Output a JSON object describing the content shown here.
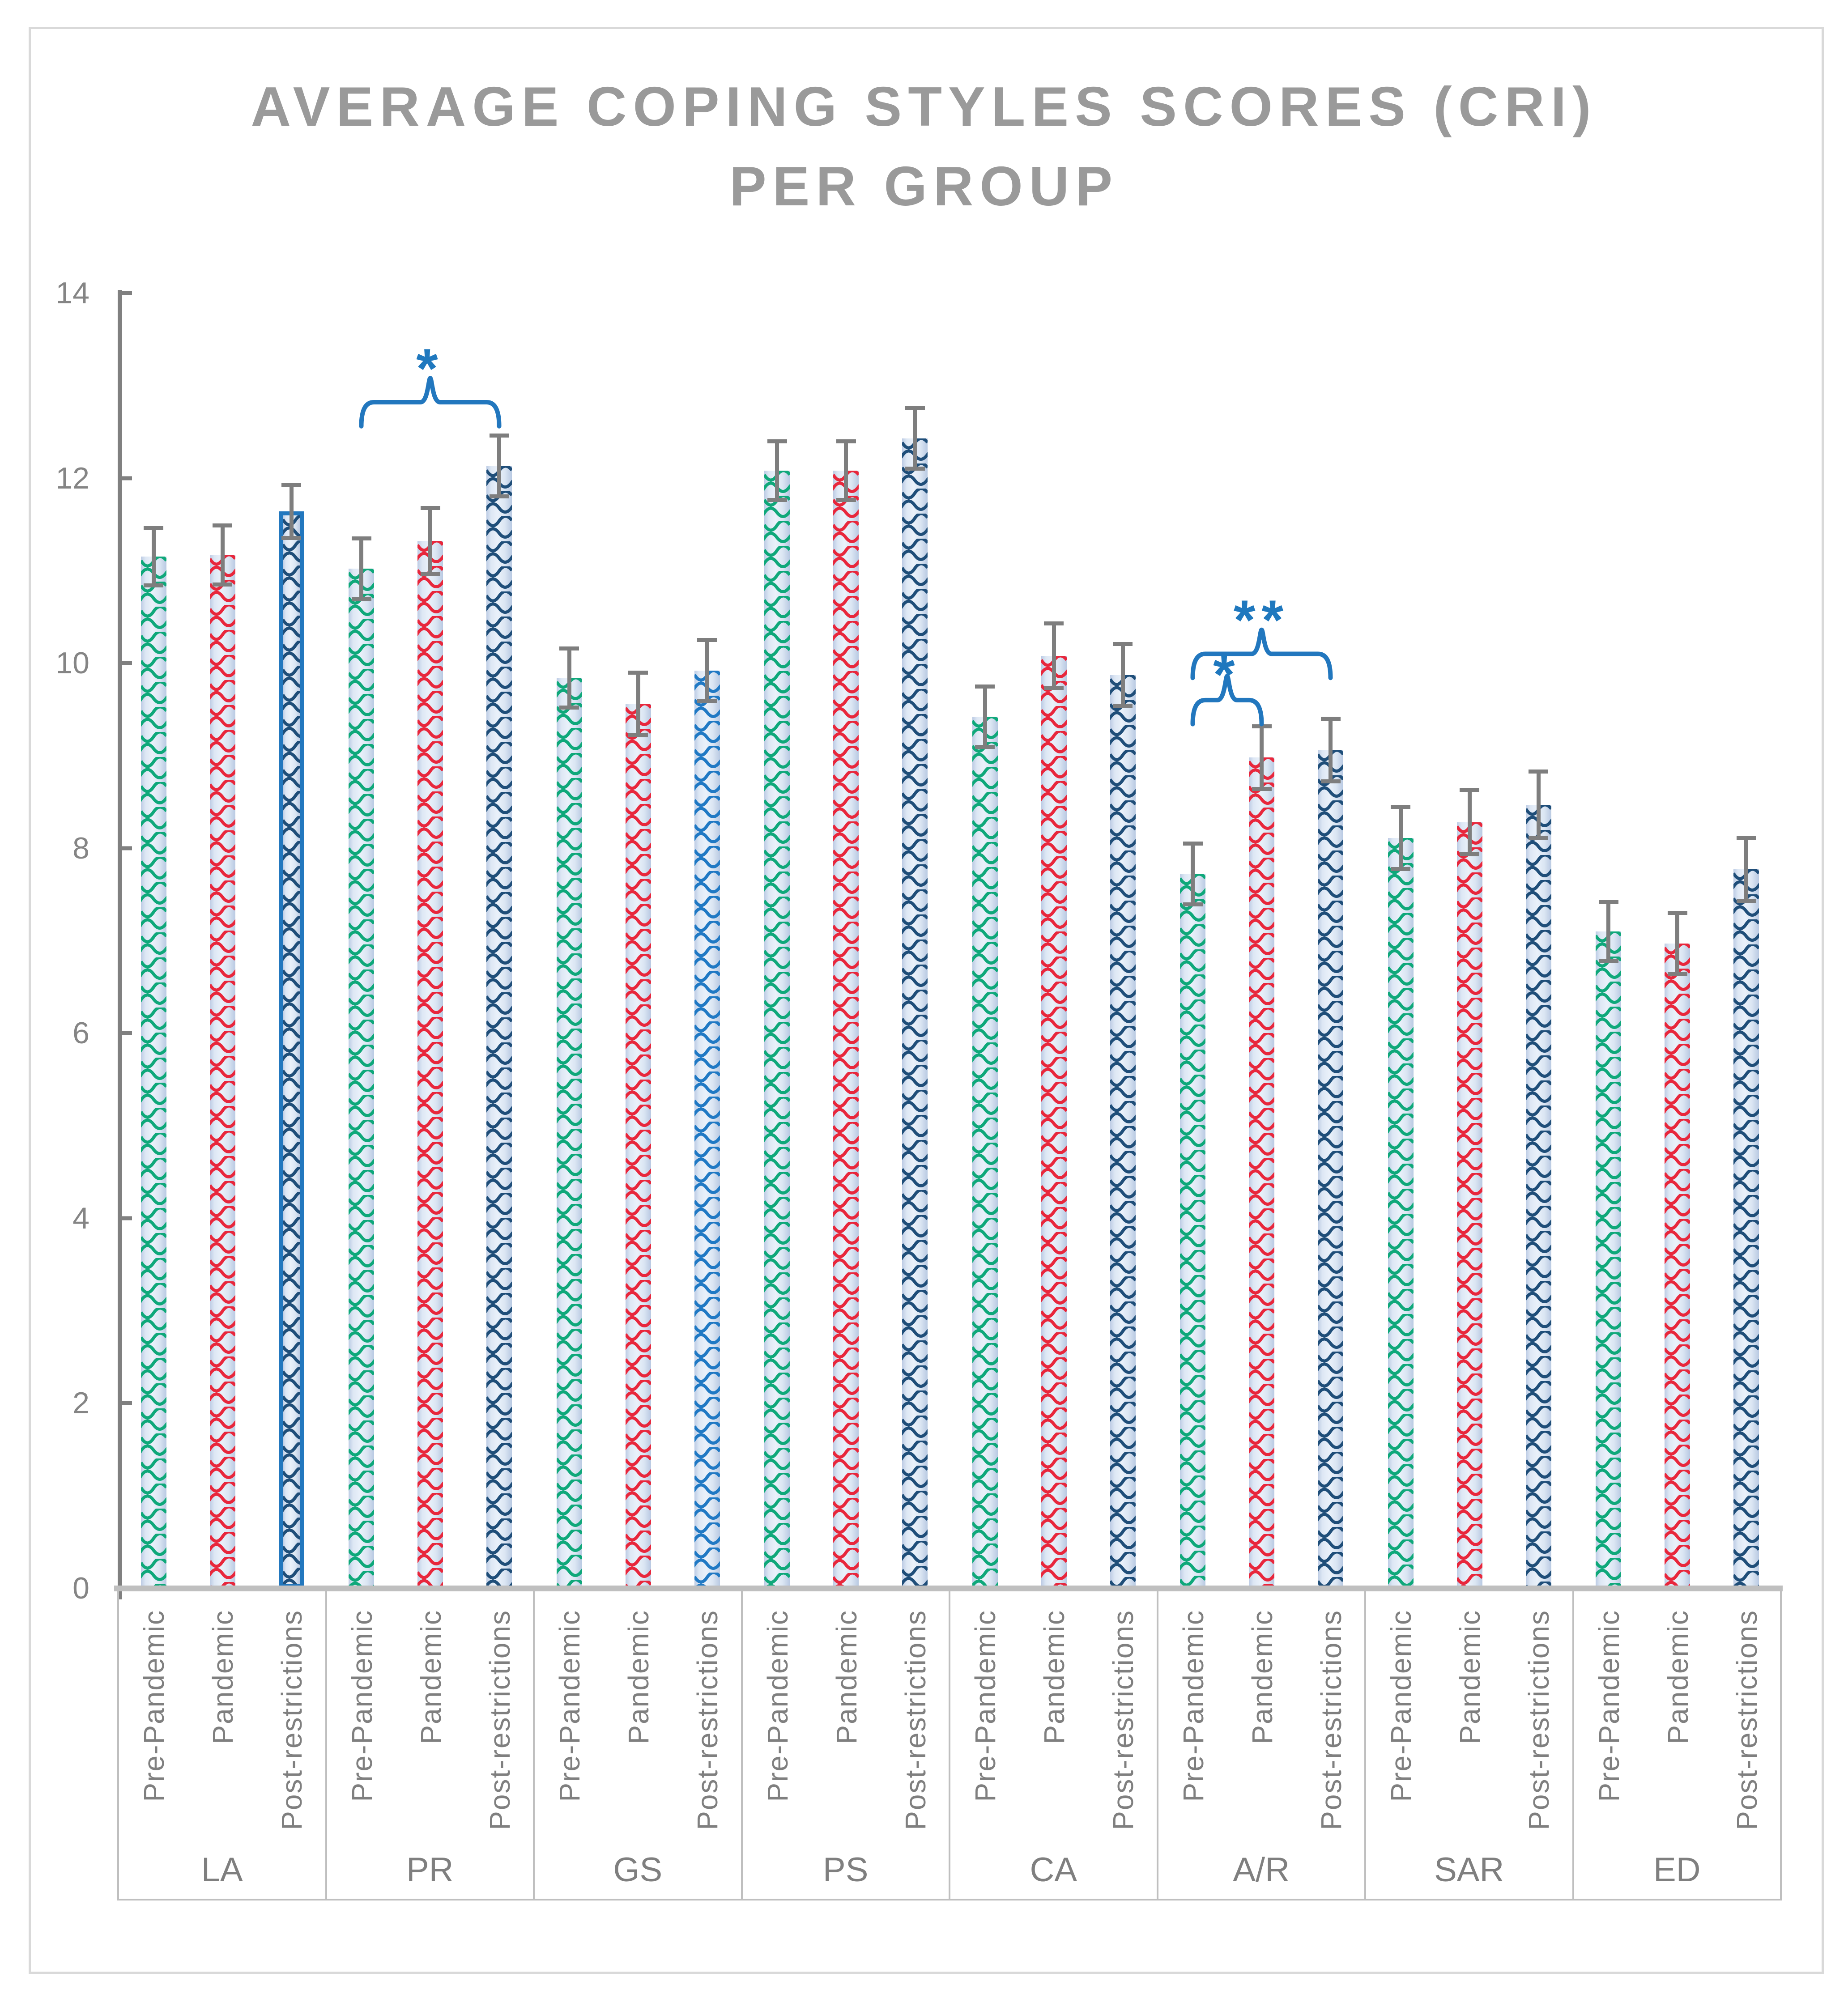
{
  "title": {
    "line1": "AVERAGE COPING STYLES SCORES (CRI)",
    "line2": "PER GROUP"
  },
  "colors": {
    "title_text": "#9a9a9a",
    "axis_text": "#858585",
    "category_text": "#7f7f7f",
    "y_axis_line": "#808080",
    "x_axis_line": "#bfbfbf",
    "table_border": "#bfbfbf",
    "figure_border": "#d9d9d9",
    "error_bar": "#7e7e7e",
    "pre_pandemic_pattern": "#0FA87A",
    "pandemic_pattern": "#E8273C",
    "post_restrictions_pattern": "#1F4E79",
    "post_restrictions_alt_pattern": "#2079C4",
    "highlight_blue": "#2277BE",
    "bar_base_light": "#eaf1fa",
    "bar_base_dark": "#bccbe4"
  },
  "chart_data": {
    "type": "bar",
    "title": "AVERAGE COPING STYLES SCORES (CRI) PER GROUP",
    "categories": [
      "LA",
      "PR",
      "GS",
      "PS",
      "CA",
      "A/R",
      "SAR",
      "ED"
    ],
    "conditions": [
      "Pre-Pandemic",
      "Pandemic",
      "Post-restrictions"
    ],
    "series": [
      {
        "name": "Pre-Pandemic",
        "values": [
          11.15,
          11.02,
          9.84,
          12.08,
          9.42,
          7.72,
          8.11,
          7.1
        ],
        "errors": [
          0.33,
          0.35,
          0.34,
          0.34,
          0.35,
          0.35,
          0.36,
          0.34
        ]
      },
      {
        "name": "Pandemic",
        "values": [
          11.17,
          11.32,
          9.56,
          12.08,
          10.08,
          8.98,
          8.28,
          6.97
        ],
        "errors": [
          0.34,
          0.38,
          0.36,
          0.34,
          0.37,
          0.36,
          0.37,
          0.35
        ]
      },
      {
        "name": "Post-restrictions",
        "values": [
          11.64,
          12.13,
          9.92,
          12.43,
          9.87,
          9.06,
          8.47,
          7.77
        ],
        "errors": [
          0.31,
          0.35,
          0.35,
          0.35,
          0.36,
          0.36,
          0.38,
          0.36
        ]
      }
    ],
    "ylim": [
      0,
      14
    ],
    "yticks": [
      0,
      2,
      4,
      6,
      8,
      10,
      12,
      14
    ],
    "grid": false,
    "legend": "none",
    "annotations": [
      {
        "label": "*",
        "group_from": "PR",
        "cond_from": "Pre-Pandemic",
        "group_to": "PR",
        "cond_to": "Post-restrictions",
        "bracket_y": 12.82,
        "label_y": 13.32
      },
      {
        "label": "*",
        "group_from": "A/R",
        "cond_from": "Pre-Pandemic",
        "group_to": "A/R",
        "cond_to": "Pandemic",
        "bracket_y": 9.6,
        "label_y": 10.01
      },
      {
        "label": "**",
        "group_from": "A/R",
        "cond_from": "Pre-Pandemic",
        "group_to": "A/R",
        "cond_to": "Post-restrictions",
        "bracket_y": 10.1,
        "label_y": 10.6
      }
    ],
    "special_formats": {
      "bordered_bar": {
        "group": "LA",
        "condition": "Post-restrictions"
      },
      "alt_blue_bar": {
        "group": "GS",
        "condition": "Post-restrictions"
      }
    }
  }
}
